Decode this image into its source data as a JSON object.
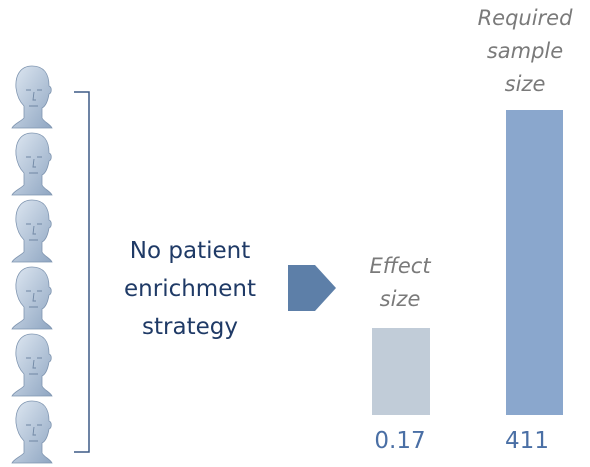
{
  "strategy": "No patient enrichment strategy",
  "bars": [
    {
      "label": "Effect size",
      "value": 0.17,
      "value_label": "0.17",
      "color": "#c1ccd8"
    },
    {
      "label": "Required sample size",
      "value": 411,
      "value_label": "411",
      "color": "#8aa7cd"
    }
  ]
}
